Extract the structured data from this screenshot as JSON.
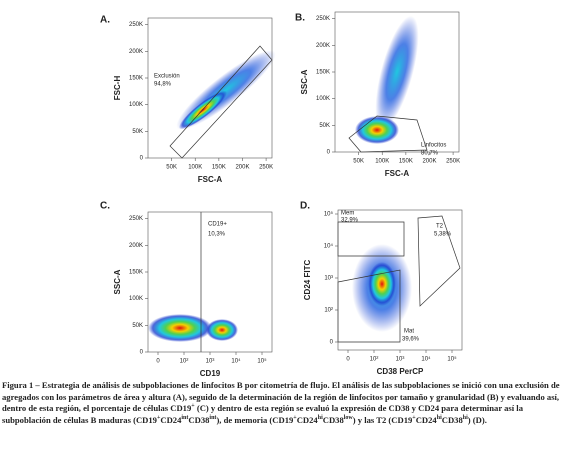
{
  "panels": [
    {
      "label": "A.",
      "x_label": "FSC-A",
      "y_label": "FSC-H",
      "xticks": [
        "50K",
        "100K",
        "150K",
        "200K",
        "250K"
      ],
      "yticks": [
        "0",
        "50K",
        "100K",
        "150K",
        "200K",
        "250K"
      ],
      "gates": [
        {
          "name": "Exclusión",
          "value": "94,8%"
        }
      ]
    },
    {
      "label": "B.",
      "x_label": "FSC-A",
      "y_label": "SSC-A",
      "xticks": [
        "50K",
        "100K",
        "150K",
        "200K",
        "250K"
      ],
      "yticks": [
        "0",
        "50K",
        "100K",
        "150K",
        "200K",
        "250K"
      ],
      "gates": [
        {
          "name": "Linfocitos",
          "value": "80,7%"
        }
      ]
    },
    {
      "label": "C.",
      "x_label": "CD19",
      "y_label": "SSC-A",
      "xticks": [
        "0",
        "10²",
        "10³",
        "10⁴",
        "10⁵"
      ],
      "yticks": [
        "0",
        "50K",
        "100K",
        "150K",
        "200K",
        "250K"
      ],
      "gates": [
        {
          "name": "CD19+",
          "value": "10,3%"
        }
      ]
    },
    {
      "label": "D.",
      "x_label": "CD38 PerCP",
      "y_label": "CD24 FITC",
      "xticks": [
        "0",
        "10²",
        "10³",
        "10⁴",
        "10⁵"
      ],
      "yticks": [
        "0",
        "10²",
        "10³",
        "10⁴",
        "10⁵"
      ],
      "gates": [
        {
          "name": "Mem",
          "value": "32,9%"
        },
        {
          "name": "T2",
          "value": "5,38%"
        },
        {
          "name": "Mat",
          "value": "39,6%"
        }
      ]
    }
  ],
  "caption": [
    {
      "t": "Figura 1 – Estrategia de análisis de subpoblaciones de linfocitos B por citometría de flujo. El análisis de las subpoblaciones se inició con una exclusión de agregados con los parámetros de área y altura (A), seguido de la determinación de la región de linfocitos por tamaño y granularidad (B) y evaluando así, dentro de esta región, el porcentaje de células CD19"
    },
    {
      "sup": "+"
    },
    {
      "t": " (C) y dentro de esta región se evaluó la expresión de CD38 y CD24 para determinar así la subpoblación de células B maduras (CD19"
    },
    {
      "sup": "+"
    },
    {
      "t": "CD24"
    },
    {
      "sup": "int"
    },
    {
      "t": "CD38"
    },
    {
      "sup": "int"
    },
    {
      "t": "), de memoria (CD19"
    },
    {
      "sup": "+"
    },
    {
      "t": "CD24"
    },
    {
      "sup": "hi"
    },
    {
      "t": "CD38"
    },
    {
      "sup": "low"
    },
    {
      "t": ") y las T2 (CD19"
    },
    {
      "sup": "+"
    },
    {
      "t": "CD24"
    },
    {
      "sup": "hi"
    },
    {
      "t": "CD38"
    },
    {
      "sup": "hi"
    },
    {
      "t": ") (D)."
    }
  ]
}
